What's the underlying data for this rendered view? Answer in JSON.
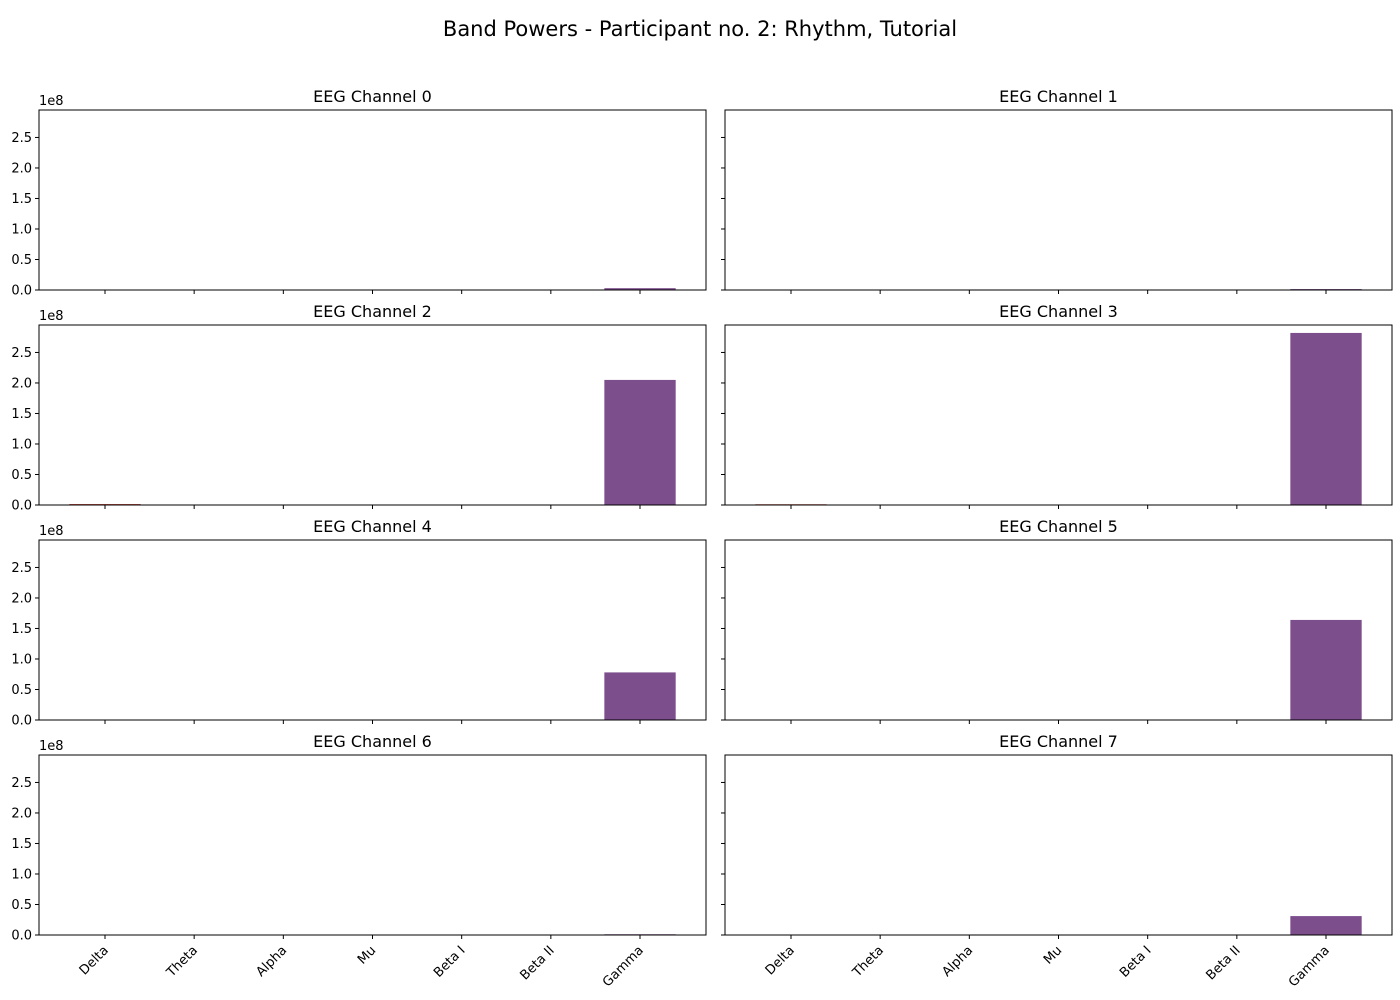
{
  "figure": {
    "title": "Band Powers - Participant no. 2: Rhythm, Tutorial"
  },
  "chart_data": {
    "type": "bar",
    "categories": [
      "Delta",
      "Theta",
      "Alpha",
      "Mu",
      "Beta I",
      "Beta II",
      "Gamma"
    ],
    "ylim": [
      0,
      295000000
    ],
    "y_ticks": [
      0,
      50000000,
      100000000,
      150000000,
      200000000,
      250000000
    ],
    "y_tick_labels": [
      "0.0",
      "0.5",
      "1.0",
      "1.5",
      "2.0",
      "2.5"
    ],
    "y_offset_label": "1e8",
    "grid": false,
    "legend": "none",
    "colors": [
      "#c0392b",
      "#d35400",
      "#e67e22",
      "#f1c40f",
      "#27ae60",
      "#2980b9",
      "#7d4e8c"
    ],
    "panels": [
      {
        "title": "EEG Channel 0",
        "values": [
          150000,
          20000,
          10000,
          8000,
          6000,
          5000,
          3000000
        ]
      },
      {
        "title": "EEG Channel 1",
        "values": [
          120000,
          15000,
          8000,
          6000,
          5000,
          4000,
          1500000
        ]
      },
      {
        "title": "EEG Channel 2",
        "values": [
          1500000,
          60000,
          30000,
          20000,
          15000,
          10000,
          205000000
        ]
      },
      {
        "title": "EEG Channel 3",
        "values": [
          1200000,
          50000,
          25000,
          20000,
          15000,
          10000,
          282000000
        ]
      },
      {
        "title": "EEG Channel 4",
        "values": [
          100000,
          15000,
          8000,
          6000,
          5000,
          4000,
          78000000
        ]
      },
      {
        "title": "EEG Channel 5",
        "values": [
          100000,
          15000,
          8000,
          6000,
          5000,
          4000,
          164000000
        ]
      },
      {
        "title": "EEG Channel 6",
        "values": [
          80000,
          12000,
          7000,
          5000,
          4000,
          3000,
          1200000
        ]
      },
      {
        "title": "EEG Channel 7",
        "values": [
          80000,
          12000,
          7000,
          5000,
          4000,
          3000,
          31000000
        ]
      }
    ]
  }
}
